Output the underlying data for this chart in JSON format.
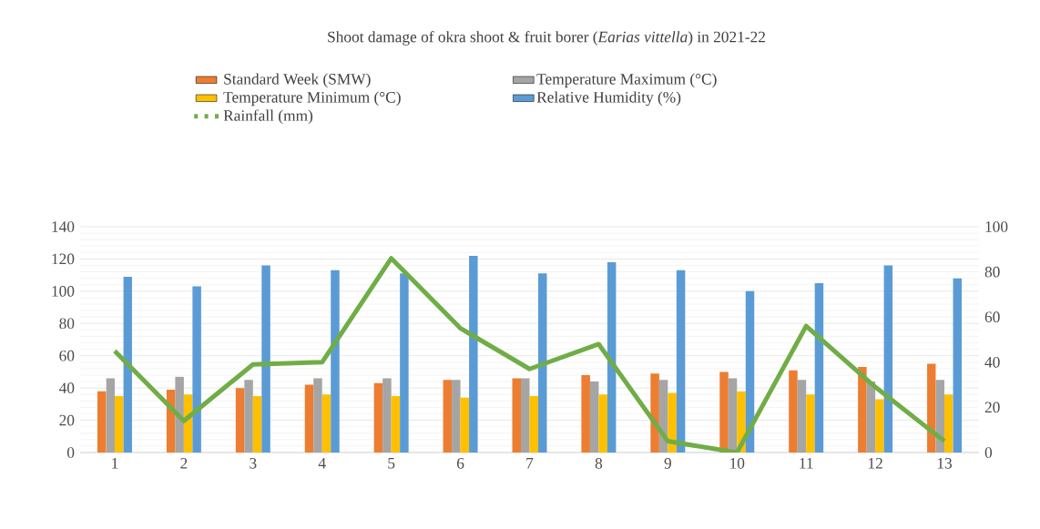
{
  "chart_data": {
    "type": "bar",
    "title": "Shoot damage of okra shoot & fruit borer (*Earias vittella*) in 2021-22",
    "categories": [
      "1",
      "2",
      "3",
      "4",
      "5",
      "6",
      "7",
      "8",
      "9",
      "10",
      "11",
      "12",
      "13"
    ],
    "series": [
      {
        "name": "Standard Week (SMW)",
        "color": "#ed7d31",
        "values": [
          38,
          39,
          40,
          42,
          43,
          45,
          46,
          48,
          49,
          50,
          51,
          53,
          55
        ]
      },
      {
        "name": "Temperature Maximum (°C)",
        "color": "#a5a5a5",
        "values": [
          46,
          47,
          45,
          46,
          46,
          45,
          46,
          44,
          45,
          46,
          45,
          44,
          45
        ]
      },
      {
        "name": "Temperature Minimum (°C)",
        "color": "#ffc000",
        "values": [
          35,
          36,
          35,
          36,
          35,
          34,
          35,
          36,
          37,
          38,
          36,
          33,
          36
        ]
      },
      {
        "name": "Relative Humidity (%)",
        "color": "#5b9bd5",
        "values": [
          109,
          103,
          116,
          113,
          111,
          122,
          111,
          118,
          113,
          100,
          105,
          116,
          108
        ]
      },
      {
        "name": "Rainfall (mm)",
        "type": "line",
        "axis": "y2",
        "color": "#70ad47",
        "values": [
          45,
          14,
          39,
          40,
          86,
          55,
          37,
          48,
          5,
          0,
          56,
          29,
          5
        ]
      }
    ],
    "ylim": [
      0,
      140
    ],
    "yticks": [
      0,
      20,
      40,
      60,
      80,
      100,
      120,
      140
    ],
    "y2lim": [
      0,
      100
    ],
    "y2ticks": [
      0,
      20,
      40,
      60,
      80,
      100
    ],
    "grid": "y",
    "legend": "top"
  }
}
